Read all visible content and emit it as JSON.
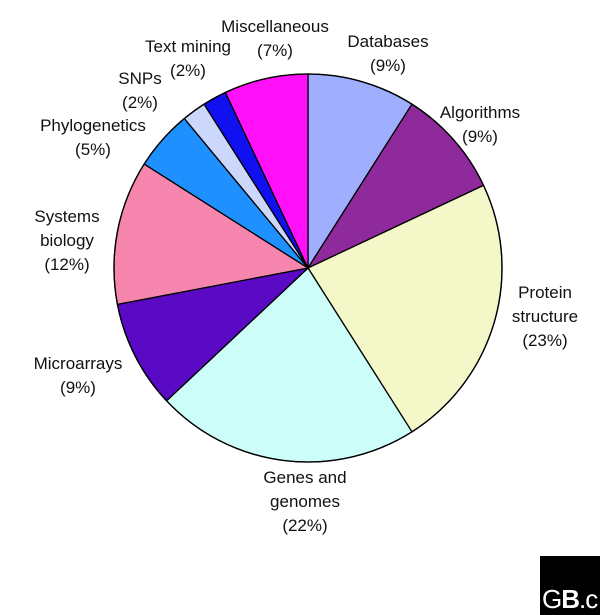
{
  "chart_data": {
    "type": "pie",
    "start_angle_deg": 0,
    "direction": "clockwise",
    "slices": [
      {
        "label": "Databases",
        "label_lines": [
          "Databases",
          "(9%)"
        ],
        "value": 9,
        "color": "#A0AEFF"
      },
      {
        "label": "Algorithms",
        "label_lines": [
          "Algorithms",
          "(9%)"
        ],
        "value": 9,
        "color": "#8E2A9C"
      },
      {
        "label": "Protein structure",
        "label_lines": [
          "Protein",
          "structure",
          "(23%)"
        ],
        "value": 23,
        "color": "#F4F8C8"
      },
      {
        "label": "Genes and genomes",
        "label_lines": [
          "Genes and",
          "genomes",
          "(22%)"
        ],
        "value": 22,
        "color": "#CCFDF8"
      },
      {
        "label": "Microarrays",
        "label_lines": [
          "Microarrays",
          "(9%)"
        ],
        "value": 9,
        "color": "#5A0AC4"
      },
      {
        "label": "Systems biology",
        "label_lines": [
          "Systems",
          "biology",
          "(12%)"
        ],
        "value": 12,
        "color": "#F786AE"
      },
      {
        "label": "Phylogenetics",
        "label_lines": [
          "Phylogenetics",
          "(5%)"
        ],
        "value": 5,
        "color": "#1E90FF"
      },
      {
        "label": "SNPs",
        "label_lines": [
          "SNPs",
          "(2%)"
        ],
        "value": 2,
        "color": "#CCD8FB"
      },
      {
        "label": "Text mining",
        "label_lines": [
          "Text  mining",
          "(2%)"
        ],
        "value": 2,
        "color": "#1010F0"
      },
      {
        "label": "Miscellaneous",
        "label_lines": [
          "Miscellaneous",
          "(7%)"
        ],
        "value": 7,
        "color": "#FF10F8"
      }
    ]
  },
  "logo": {
    "text_1": "G",
    "text_2": "B",
    "text_3": ".c"
  }
}
